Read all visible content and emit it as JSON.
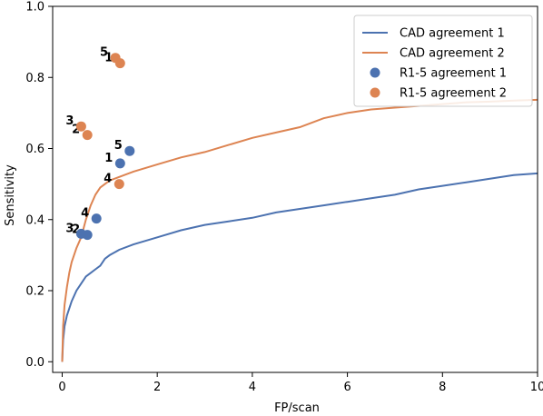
{
  "chart_data": {
    "type": "line",
    "xlabel": "FP/scan",
    "ylabel": "Sensitivity",
    "xlim": [
      -0.2,
      10
    ],
    "ylim": [
      -0.03,
      1.0
    ],
    "xticks": [
      0,
      2,
      4,
      6,
      8,
      10
    ],
    "yticks": [
      0.0,
      0.2,
      0.4,
      0.6,
      0.8,
      1.0
    ],
    "grid": false,
    "legend_position": "top-right",
    "colors": {
      "series1": "#4c72b0",
      "series2": "#dd8452"
    },
    "series": [
      {
        "name": "CAD agreement 1",
        "kind": "line",
        "color": "#4c72b0",
        "x": [
          0,
          0.02,
          0.05,
          0.1,
          0.15,
          0.2,
          0.3,
          0.4,
          0.5,
          0.6,
          0.7,
          0.8,
          0.9,
          1.0,
          1.2,
          1.5,
          2.0,
          2.5,
          3.0,
          3.5,
          4.0,
          4.5,
          5.0,
          5.5,
          6.0,
          6.5,
          7.0,
          7.5,
          8.0,
          8.5,
          9.0,
          9.5,
          10.0
        ],
        "y": [
          0.0,
          0.06,
          0.1,
          0.13,
          0.15,
          0.17,
          0.2,
          0.22,
          0.24,
          0.25,
          0.26,
          0.27,
          0.29,
          0.3,
          0.315,
          0.33,
          0.35,
          0.37,
          0.385,
          0.395,
          0.405,
          0.42,
          0.43,
          0.44,
          0.45,
          0.46,
          0.47,
          0.485,
          0.495,
          0.505,
          0.515,
          0.525,
          0.53
        ]
      },
      {
        "name": "CAD agreement 2",
        "kind": "line",
        "color": "#dd8452",
        "x": [
          0,
          0.02,
          0.05,
          0.1,
          0.15,
          0.2,
          0.3,
          0.4,
          0.5,
          0.6,
          0.7,
          0.8,
          0.9,
          1.0,
          1.2,
          1.5,
          2.0,
          2.5,
          3.0,
          3.5,
          4.0,
          4.5,
          5.0,
          5.5,
          6.0,
          6.5,
          7.0,
          7.5,
          8.0,
          8.5,
          9.0,
          9.5,
          10.0
        ],
        "y": [
          0.0,
          0.1,
          0.16,
          0.21,
          0.25,
          0.28,
          0.32,
          0.35,
          0.4,
          0.44,
          0.47,
          0.49,
          0.5,
          0.51,
          0.52,
          0.535,
          0.555,
          0.575,
          0.59,
          0.61,
          0.63,
          0.645,
          0.66,
          0.685,
          0.7,
          0.71,
          0.715,
          0.72,
          0.725,
          0.73,
          0.732,
          0.735,
          0.737
        ]
      },
      {
        "name": "R1-5 agreement 1",
        "kind": "scatter",
        "color": "#4c72b0",
        "points": [
          {
            "label": "1",
            "x": 1.22,
            "y": 0.558
          },
          {
            "label": "2",
            "x": 0.53,
            "y": 0.357
          },
          {
            "label": "3",
            "x": 0.4,
            "y": 0.36
          },
          {
            "label": "4",
            "x": 0.72,
            "y": 0.403
          },
          {
            "label": "5",
            "x": 1.42,
            "y": 0.593
          }
        ]
      },
      {
        "name": "R1-5 agreement 2",
        "kind": "scatter",
        "color": "#dd8452",
        "points": [
          {
            "label": "1",
            "x": 1.22,
            "y": 0.84
          },
          {
            "label": "2",
            "x": 0.53,
            "y": 0.638
          },
          {
            "label": "3",
            "x": 0.4,
            "y": 0.662
          },
          {
            "label": "4",
            "x": 1.2,
            "y": 0.5
          },
          {
            "label": "5",
            "x": 1.12,
            "y": 0.855
          }
        ]
      }
    ]
  }
}
